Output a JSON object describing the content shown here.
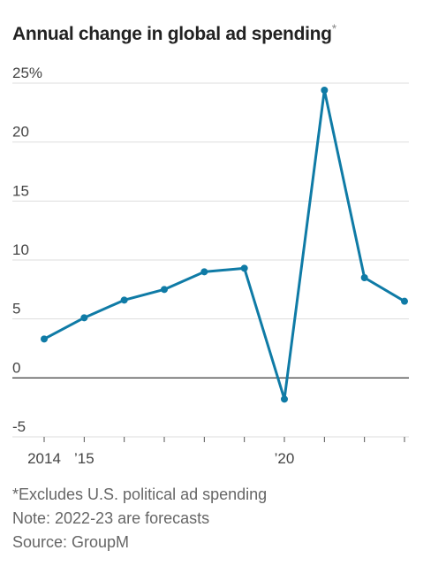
{
  "title": "Annual change in global ad spending",
  "title_mark": "*",
  "notes": [
    "*Excludes U.S. political ad spending",
    "Note: 2022-23 are forecasts",
    "Source: GroupM"
  ],
  "chart_data": {
    "type": "line",
    "title": "Annual change in global ad spending",
    "x": [
      2014,
      2015,
      2016,
      2017,
      2018,
      2019,
      2020,
      2021,
      2022,
      2023
    ],
    "series": [
      {
        "values": [
          3.3,
          5.1,
          6.6,
          7.5,
          9.0,
          9.3,
          -1.8,
          24.4,
          8.5,
          6.5
        ]
      }
    ],
    "xlim": [
      2014,
      2023
    ],
    "ylim": [
      -5,
      25
    ],
    "y_ticks": [
      25,
      20,
      15,
      10,
      5,
      0,
      -5
    ],
    "y_tick_labels": [
      "25%",
      "20",
      "15",
      "10",
      "5",
      "0",
      "-5"
    ],
    "x_ticks": [
      2014,
      2015,
      2016,
      2017,
      2018,
      2019,
      2020,
      2021,
      2022,
      2023
    ],
    "x_tick_labels": [
      "2014",
      "’15",
      "",
      "",
      "",
      "",
      "’20",
      "",
      "",
      ""
    ],
    "grid": true,
    "line_color": "#0f7ba6",
    "zero_line_color": "#222222",
    "grid_color": "#dddddd"
  }
}
